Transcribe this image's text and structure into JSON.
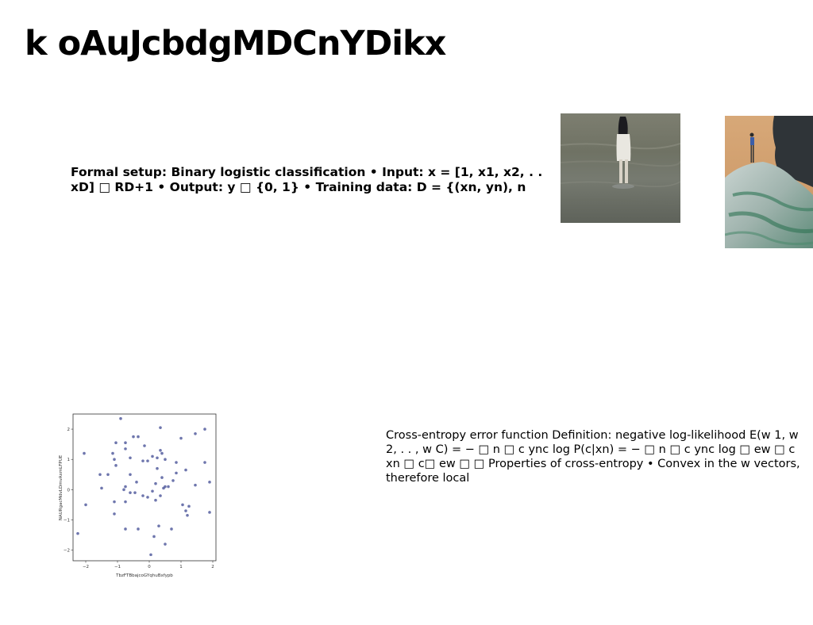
{
  "slide": {
    "title": "k oAuJcbdgMDCnYDikx",
    "text_block_1": "Formal setup: Binary logistic classification • Input: x = [1, x1, x2, . . xD] □ RD+1 • Output: y □ {0, 1} • Training data: D = {(xn, yn), n",
    "text_block_2": "Cross-entropy error function Definition: negative log-likelihood E(w 1, w 2, . . , w C) = − □ n □ c ync log P(c|xn) = − □ n □ c ync log □ ew □ c xn □ c□ ew □ □ Properties of cross-entropy • Convex in the w vectors, therefore local"
  },
  "images": {
    "photo_1": "woman-in-water-photo",
    "photo_2": "person-on-rock-photo"
  },
  "colors": {
    "point": "#4a5499",
    "axis": "#333333"
  },
  "chart_data": {
    "type": "scatter",
    "xlabel": "TbzFTBbajcoGYqhuBxfypb",
    "ylabel": "NAURgacMdvLDmvAxmLFPUE",
    "xlim": [
      -2.4,
      2.1
    ],
    "ylim": [
      -2.35,
      2.5
    ],
    "x_ticks": [
      "−2",
      "−1",
      "0",
      "1",
      "2"
    ],
    "y_ticks": [
      "−2",
      "−1",
      "0",
      "1",
      "2"
    ],
    "x_tick_values": [
      -2,
      -1,
      0,
      1,
      2
    ],
    "y_tick_values": [
      -2,
      -1,
      0,
      1,
      2
    ],
    "grid": false,
    "points": [
      {
        "x": -0.9,
        "y": 2.35
      },
      {
        "x": 0.35,
        "y": 2.05
      },
      {
        "x": 1.75,
        "y": 2.0
      },
      {
        "x": -0.5,
        "y": 1.75
      },
      {
        "x": -0.35,
        "y": 1.75
      },
      {
        "x": 1.45,
        "y": 1.85
      },
      {
        "x": 1.0,
        "y": 1.7
      },
      {
        "x": -1.05,
        "y": 1.55
      },
      {
        "x": -0.75,
        "y": 1.55
      },
      {
        "x": -0.15,
        "y": 1.45
      },
      {
        "x": -0.75,
        "y": 1.35
      },
      {
        "x": 0.35,
        "y": 1.3
      },
      {
        "x": -2.05,
        "y": 1.2
      },
      {
        "x": -1.15,
        "y": 1.2
      },
      {
        "x": 0.4,
        "y": 1.2
      },
      {
        "x": 0.1,
        "y": 1.1
      },
      {
        "x": 0.5,
        "y": 1.0
      },
      {
        "x": -1.1,
        "y": 1.0
      },
      {
        "x": -0.6,
        "y": 1.05
      },
      {
        "x": 0.25,
        "y": 1.05
      },
      {
        "x": -0.2,
        "y": 0.95
      },
      {
        "x": -0.05,
        "y": 0.95
      },
      {
        "x": 0.85,
        "y": 0.9
      },
      {
        "x": 1.75,
        "y": 0.9
      },
      {
        "x": -1.05,
        "y": 0.8
      },
      {
        "x": 0.25,
        "y": 0.7
      },
      {
        "x": 1.15,
        "y": 0.65
      },
      {
        "x": -1.55,
        "y": 0.5
      },
      {
        "x": -1.3,
        "y": 0.5
      },
      {
        "x": -0.6,
        "y": 0.5
      },
      {
        "x": 0.85,
        "y": 0.55
      },
      {
        "x": 0.4,
        "y": 0.4
      },
      {
        "x": 0.75,
        "y": 0.3
      },
      {
        "x": -0.4,
        "y": 0.25
      },
      {
        "x": 0.2,
        "y": 0.2
      },
      {
        "x": 1.45,
        "y": 0.15
      },
      {
        "x": 1.9,
        "y": 0.25
      },
      {
        "x": -1.5,
        "y": 0.05
      },
      {
        "x": -0.8,
        "y": 0.0
      },
      {
        "x": -0.75,
        "y": 0.1
      },
      {
        "x": 0.45,
        "y": 0.05
      },
      {
        "x": 0.6,
        "y": 0.1
      },
      {
        "x": 0.5,
        "y": 0.1
      },
      {
        "x": -0.6,
        "y": -0.1
      },
      {
        "x": -0.45,
        "y": -0.1
      },
      {
        "x": -0.2,
        "y": -0.2
      },
      {
        "x": 0.1,
        "y": -0.05
      },
      {
        "x": 0.35,
        "y": -0.2
      },
      {
        "x": -0.05,
        "y": -0.25
      },
      {
        "x": -1.1,
        "y": -0.4
      },
      {
        "x": -0.75,
        "y": -0.4
      },
      {
        "x": 0.2,
        "y": -0.35
      },
      {
        "x": -2.0,
        "y": -0.5
      },
      {
        "x": 1.05,
        "y": -0.5
      },
      {
        "x": 1.25,
        "y": -0.55
      },
      {
        "x": 1.15,
        "y": -0.7
      },
      {
        "x": 1.2,
        "y": -0.85
      },
      {
        "x": 1.9,
        "y": -0.75
      },
      {
        "x": -1.1,
        "y": -0.8
      },
      {
        "x": -0.75,
        "y": -1.3
      },
      {
        "x": -0.35,
        "y": -1.3
      },
      {
        "x": 0.3,
        "y": -1.2
      },
      {
        "x": 0.7,
        "y": -1.3
      },
      {
        "x": -2.25,
        "y": -1.45
      },
      {
        "x": 0.15,
        "y": -1.55
      },
      {
        "x": 0.5,
        "y": -1.8
      },
      {
        "x": 0.05,
        "y": -2.15
      }
    ]
  }
}
